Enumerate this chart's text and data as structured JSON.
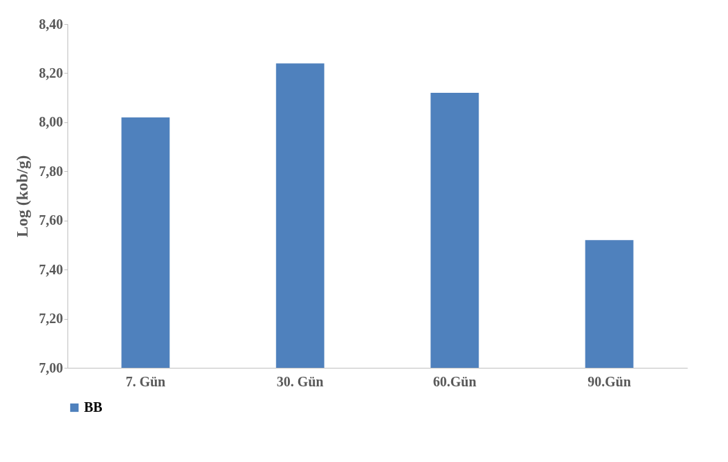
{
  "chart_data": {
    "type": "bar",
    "ylabel": "Log (kob/g)",
    "categories": [
      "7. Gün",
      "30. Gün",
      "60.Gün",
      "90.Gün"
    ],
    "series": [
      {
        "name": "BB",
        "color": "#4f81bd",
        "values": [
          8.02,
          8.24,
          8.12,
          7.52
        ]
      }
    ],
    "ylim": [
      7.0,
      8.4
    ],
    "yticks": [
      {
        "value": 7.0,
        "label": "7,00"
      },
      {
        "value": 7.2,
        "label": "7,20"
      },
      {
        "value": 7.4,
        "label": "7,40"
      },
      {
        "value": 7.6,
        "label": "7,60"
      },
      {
        "value": 7.8,
        "label": "7,80"
      },
      {
        "value": 8.0,
        "label": "8,00"
      },
      {
        "value": 8.2,
        "label": "8,20"
      },
      {
        "value": 8.4,
        "label": "8,40"
      }
    ],
    "grid": false,
    "legend": "bottom"
  }
}
